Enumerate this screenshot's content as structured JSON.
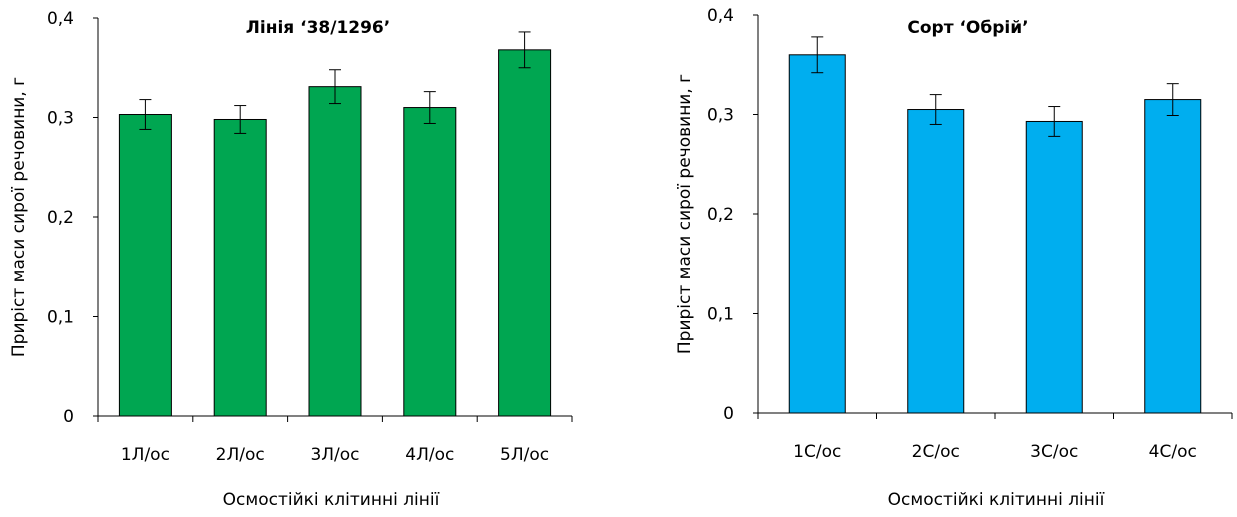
{
  "chart_data": [
    {
      "type": "bar",
      "title": "Лінія ‘38/1296’",
      "xlabel": "Осмостійкі клітинні лінії",
      "ylabel": "Приріст маси сирої речовини, г",
      "categories": [
        "1Л/ос",
        "2Л/ос",
        "3Л/ос",
        "4Л/ос",
        "5Л/ос"
      ],
      "values": [
        0.303,
        0.298,
        0.331,
        0.31,
        0.368
      ],
      "errors": [
        0.015,
        0.014,
        0.017,
        0.016,
        0.018
      ],
      "ylim": [
        0,
        0.4
      ],
      "yticks": [
        "0",
        "0,1",
        "0,2",
        "0,3",
        "0,4"
      ],
      "bar_color": "#00A651",
      "grid": false
    },
    {
      "type": "bar",
      "title": "Сорт ‘Обрій’",
      "xlabel": "Осмостійкі клітинні лінії",
      "ylabel": "Приріст маси сирої речовини, г",
      "categories": [
        "1С/ос",
        "2С/ос",
        "3С/ос",
        "4С/ос"
      ],
      "values": [
        0.36,
        0.305,
        0.293,
        0.315
      ],
      "errors": [
        0.018,
        0.015,
        0.015,
        0.016
      ],
      "ylim": [
        0,
        0.4
      ],
      "yticks": [
        "0",
        "0,1",
        "0,2",
        "0,3",
        "0,4"
      ],
      "bar_color": "#00AEEF",
      "grid": false
    }
  ]
}
